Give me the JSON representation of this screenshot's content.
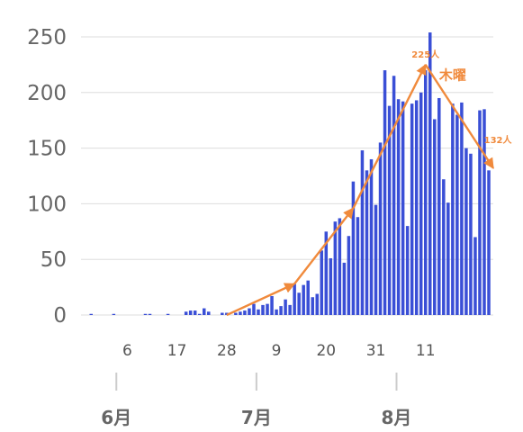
{
  "chart_data": {
    "type": "bar",
    "title": "",
    "xlabel": "",
    "ylabel": "",
    "ylim": [
      0,
      270
    ],
    "yticks": [
      0,
      50,
      100,
      150,
      200,
      250
    ],
    "grid": "horizontal",
    "bar_color": "#3a4fd6",
    "annotation_color": "#f08a3c",
    "x_tick_labels": [
      {
        "day": 8,
        "label": "6"
      },
      {
        "day": 19,
        "label": "17"
      },
      {
        "day": 30,
        "label": "28"
      },
      {
        "day": 41,
        "label": "9"
      },
      {
        "day": 52,
        "label": "20"
      },
      {
        "day": 63,
        "label": "31"
      },
      {
        "day": 74,
        "label": "11"
      }
    ],
    "month_labels": [
      {
        "day": 0,
        "label": "6月"
      },
      {
        "day": 31,
        "label": "7月"
      },
      {
        "day": 62,
        "label": "8月"
      }
    ],
    "series": [
      {
        "values": [
          1,
          0,
          0,
          0,
          0,
          1,
          0,
          0,
          0,
          0,
          0,
          0,
          1,
          1,
          0,
          0,
          0,
          1,
          0,
          0,
          0,
          3,
          4,
          4,
          1,
          6,
          3,
          0,
          0,
          2,
          2,
          0,
          2,
          3,
          4,
          6,
          10,
          5,
          9,
          10,
          17,
          5,
          8,
          14,
          9,
          28,
          20,
          27,
          31,
          16,
          19,
          58,
          75,
          51,
          84,
          87,
          47,
          71,
          120,
          88,
          148,
          130,
          140,
          99,
          155,
          220,
          188,
          215,
          194,
          192,
          80,
          190,
          193,
          200,
          220,
          254,
          176,
          195,
          122,
          101,
          190,
          180,
          191,
          150,
          145,
          70,
          184,
          185,
          130
        ]
      }
    ],
    "trend_line": [
      {
        "day": 30,
        "value": 0
      },
      {
        "day": 45,
        "value": 28
      },
      {
        "day": 58,
        "value": 96
      },
      {
        "day": 74,
        "value": 225
      },
      {
        "day": 89,
        "value": 132
      }
    ],
    "annotations": [
      {
        "text": "225人",
        "day": 74,
        "value": 225,
        "style": "small"
      },
      {
        "text": "木曜",
        "day": 80,
        "value": 205,
        "style": "big"
      },
      {
        "text": "132人",
        "day": 90,
        "value": 148,
        "style": "small"
      }
    ]
  }
}
